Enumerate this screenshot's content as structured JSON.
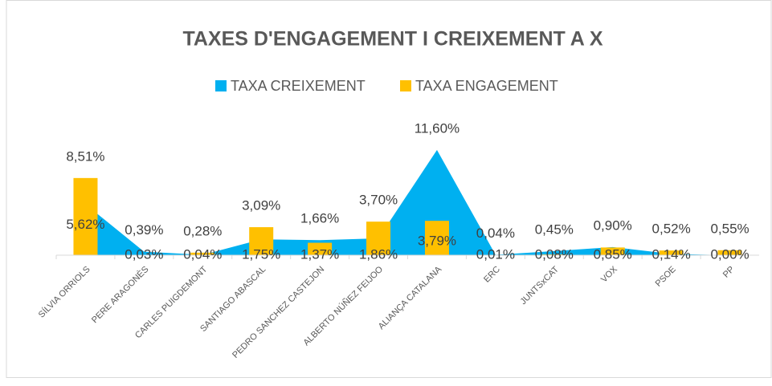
{
  "chart_data": {
    "type": "bar-area",
    "title": "TAXES D'ENGAGEMENT I CREIXEMENT A X",
    "categories": [
      "SÍLVIA ORRIOLS",
      "PERE ARAGONÈS",
      "CARLES PUIGDEMONT",
      "SANTIAGO ABASCAL",
      "PEDRO SANCHEZ CASTEJON",
      "ALBERTO NÚÑEZ FEIJOO",
      "ALIANÇA CATALANA",
      "ERC",
      "JUNTSxCAT",
      "VOX",
      "PSOE",
      "PP"
    ],
    "series": [
      {
        "name": "TAXA CREIXEMENT",
        "color": "#00B0F0",
        "kind": "area",
        "values": [
          5.62,
          0.39,
          0.04,
          1.75,
          1.66,
          1.86,
          11.6,
          0.04,
          0.45,
          0.9,
          0.14,
          0
        ],
        "value_labels": [
          "5,62%",
          "0,39%",
          "0,04%",
          "1,75%",
          "1,66%",
          "1,86%",
          "11,60%",
          "0,04%",
          "0,45%",
          "0,90%",
          "0,14%",
          "0,00%"
        ]
      },
      {
        "name": "TAXA ENGAGEMENT",
        "color": "#FFC000",
        "kind": "bar",
        "values": [
          8.51,
          0.03,
          0.28,
          3.09,
          1.37,
          3.7,
          3.79,
          0.01,
          0.08,
          0.85,
          0.52,
          0.55
        ],
        "value_labels": [
          "8,51%",
          "0,03%",
          "0,28%",
          "3,09%",
          "1,37%",
          "3,70%",
          "3,79%",
          "0,01%",
          "0,08%",
          "0,85%",
          "0,52%",
          "0,55%"
        ]
      }
    ]
  }
}
